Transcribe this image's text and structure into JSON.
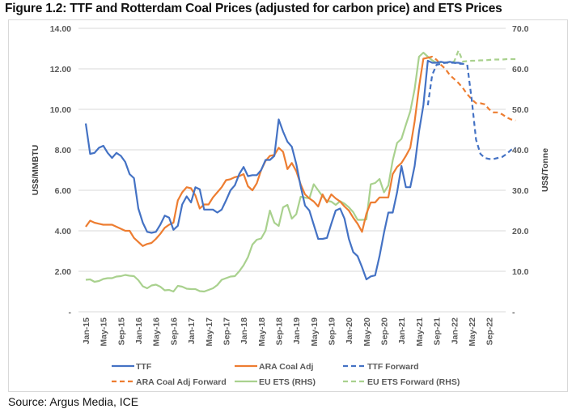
{
  "figure_title": "Figure 1.2: TTF and Rotterdam Coal Prices (adjusted for carbon price) and ETS Prices",
  "source": "Source: Argus Media, ICE",
  "chart_data": {
    "type": "line",
    "title": "Figure 1.2: TTF and Rotterdam Coal Prices (adjusted for carbon price) and ETS Prices",
    "ylabel": "US$/MMBTU",
    "ylabel_right": "US$/Tonne",
    "ylim": [
      0,
      14
    ],
    "ylim_right": [
      0,
      70
    ],
    "yticks": [
      "-",
      "2.00",
      "4.00",
      "6.00",
      "8.00",
      "10.00",
      "12.00",
      "14.00"
    ],
    "yticks_right": [
      "-",
      "10.0",
      "20.0",
      "30.0",
      "40.0",
      "50.0",
      "60.0",
      "70.0"
    ],
    "grid": true,
    "legend_position": "bottom",
    "x_start": "Jan-15",
    "x_step_months": 1,
    "xtick_labels": [
      "Jan-15",
      "May-15",
      "Sep-15",
      "Jan-16",
      "May-16",
      "Sep-16",
      "Jan-17",
      "May-17",
      "Sep-17",
      "Jan-18",
      "May-18",
      "Sep-18",
      "Jan-19",
      "May-19",
      "Sep-19",
      "Jan-20",
      "May-20",
      "Sep-20",
      "Jan-21",
      "May-21",
      "Sep-21",
      "Jan-22",
      "May-22",
      "Sep-22"
    ],
    "series": [
      {
        "name": "TTF",
        "axis": "left",
        "color": "#4472C4",
        "dash": false,
        "start_index": 0,
        "values": [
          9.3,
          7.8,
          7.85,
          8.1,
          8.2,
          7.85,
          7.6,
          7.85,
          7.7,
          7.4,
          6.8,
          6.6,
          5.1,
          4.4,
          3.95,
          3.9,
          3.95,
          4.3,
          4.75,
          4.65,
          4.05,
          4.25,
          5.3,
          5.7,
          5.4,
          6.15,
          6.05,
          5.05,
          5.05,
          5.05,
          4.9,
          5.05,
          5.5,
          6.0,
          6.25,
          6.8,
          7.15,
          6.7,
          6.75,
          6.75,
          7.0,
          7.5,
          7.5,
          7.7,
          9.5,
          8.9,
          8.4,
          8.15,
          7.3,
          6.2,
          5.25,
          5.0,
          4.3,
          3.6,
          3.6,
          3.65,
          4.35,
          5.0,
          5.1,
          4.6,
          3.6,
          2.95,
          2.75,
          2.2,
          1.6,
          1.75,
          1.8,
          2.75,
          3.9,
          4.9,
          4.9,
          5.9,
          7.2,
          6.15,
          6.15,
          7.2,
          8.9,
          10.2,
          12.4,
          12.3,
          12.3,
          12.35,
          12.3,
          12.35,
          12.3,
          12.3,
          12.25
        ]
      },
      {
        "name": "ARA Coal Adj",
        "axis": "left",
        "color": "#ED7D31",
        "dash": false,
        "start_index": 0,
        "values": [
          4.2,
          4.5,
          4.4,
          4.35,
          4.3,
          4.3,
          4.3,
          4.2,
          4.1,
          4.0,
          4.0,
          3.65,
          3.45,
          3.25,
          3.35,
          3.4,
          3.6,
          3.85,
          4.15,
          4.3,
          4.4,
          5.5,
          5.9,
          6.15,
          6.1,
          5.75,
          5.1,
          5.3,
          5.3,
          5.65,
          5.9,
          6.15,
          6.5,
          6.55,
          6.65,
          6.7,
          6.8,
          6.2,
          6.0,
          6.35,
          7.0,
          7.45,
          7.7,
          7.75,
          8.1,
          7.9,
          7.05,
          7.35,
          6.95,
          6.3,
          5.8,
          5.6,
          5.45,
          5.2,
          5.8,
          5.4,
          5.8,
          5.6,
          5.45,
          5.2,
          5.0,
          4.65,
          4.35,
          3.95,
          4.85,
          5.4,
          5.4,
          5.65,
          5.65,
          5.65,
          6.8,
          7.15,
          7.35,
          7.7,
          8.1,
          9.4,
          11.1,
          12.5,
          12.55
        ]
      },
      {
        "name": "TTF Forward",
        "axis": "left",
        "color": "#4472C4",
        "dash": true,
        "start_index": 78,
        "values": [
          10.2,
          11.7,
          12.2,
          12.25,
          12.3,
          12.3,
          12.3,
          12.25,
          12.25,
          12.2,
          10.5,
          8.5,
          7.8,
          7.6,
          7.55,
          7.55,
          7.6,
          7.65,
          7.8,
          8.0,
          8.1
        ]
      },
      {
        "name": "ARA Coal Adj Forward",
        "axis": "left",
        "color": "#ED7D31",
        "dash": true,
        "start_index": 78,
        "values": [
          12.55,
          12.6,
          12.45,
          12.2,
          12.0,
          11.7,
          11.5,
          11.3,
          11.05,
          10.75,
          10.5,
          10.3,
          10.3,
          10.25,
          10.0,
          9.85,
          9.85,
          9.75,
          9.6,
          9.5,
          9.45
        ]
      },
      {
        "name": "EU ETS (RHS)",
        "axis": "right",
        "color": "#A9D18E",
        "dash": false,
        "start_index": 0,
        "values": [
          7.9,
          8.0,
          7.4,
          7.6,
          8.1,
          8.3,
          8.3,
          8.7,
          8.8,
          9.1,
          8.9,
          8.8,
          7.8,
          6.3,
          5.8,
          6.5,
          6.7,
          6.2,
          5.3,
          5.4,
          5.0,
          6.4,
          6.2,
          5.7,
          5.6,
          5.6,
          5.1,
          5.0,
          5.4,
          5.8,
          6.6,
          7.9,
          8.3,
          8.7,
          8.8,
          10.0,
          11.5,
          13.5,
          16.6,
          17.8,
          18.1,
          20.0,
          25.0,
          22.0,
          21.2,
          25.8,
          26.4,
          23.0,
          24.1,
          28.4,
          28.2,
          28.0,
          31.5,
          30.0,
          28.5,
          27.4,
          27.2,
          26.4,
          27.3,
          26.7,
          25.8,
          24.6,
          22.7,
          22.7,
          22.8,
          31.5,
          31.8,
          32.8,
          29.5,
          31.2,
          37.4,
          41.7,
          42.7,
          46.2,
          49.5,
          55.0,
          63.0,
          64.0,
          63.0,
          62.1,
          61.5
        ]
      },
      {
        "name": "EU ETS Forward (RHS)",
        "axis": "right",
        "color": "#A9D18E",
        "dash": true,
        "start_index": 80,
        "values": [
          61.5,
          61.6,
          61.6,
          61.6,
          61.8,
          64.5,
          61.8,
          61.9,
          62.0,
          62.0,
          62.1,
          62.1,
          62.2,
          62.3,
          62.3,
          62.3,
          62.4,
          62.4,
          62.4
        ]
      }
    ],
    "legend": [
      {
        "label": "TTF",
        "color": "#4472C4",
        "dash": false
      },
      {
        "label": "ARA Coal Adj",
        "color": "#ED7D31",
        "dash": false
      },
      {
        "label": "TTF Forward",
        "color": "#4472C4",
        "dash": true
      },
      {
        "label": "ARA Coal Adj Forward",
        "color": "#ED7D31",
        "dash": true
      },
      {
        "label": "EU ETS (RHS)",
        "color": "#A9D18E",
        "dash": false
      },
      {
        "label": "EU ETS Forward (RHS)",
        "color": "#A9D18E",
        "dash": true
      }
    ]
  }
}
